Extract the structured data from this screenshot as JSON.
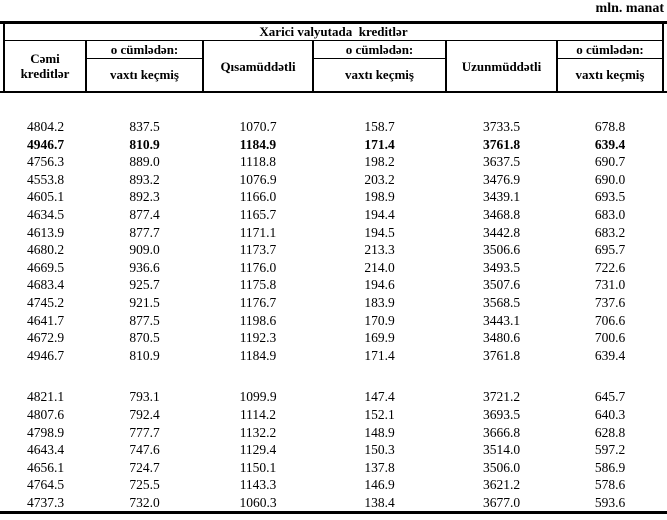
{
  "unit_label": "mln. manat",
  "table": {
    "title": "Xarici valyutada  kreditlər",
    "header": {
      "total_label": [
        "Cəmi",
        "kreditlər"
      ],
      "of_which_label": "o cümlədən:",
      "overdue_label": "vaxtı keçmiş",
      "short_term_label": "Qısamüddətli",
      "long_term_label": "Uzunmüddətli"
    },
    "groups": [
      {
        "rows": [
          {
            "values": [
              "4804.2",
              "837.5",
              "1070.7",
              "158.7",
              "3733.5",
              "678.8"
            ],
            "bold": false
          },
          {
            "values": [
              "4946.7",
              "810.9",
              "1184.9",
              "171.4",
              "3761.8",
              "639.4"
            ],
            "bold": true
          },
          {
            "values": [
              "4756.3",
              "889.0",
              "1118.8",
              "198.2",
              "3637.5",
              "690.7"
            ],
            "bold": false
          },
          {
            "values": [
              "4553.8",
              "893.2",
              "1076.9",
              "203.2",
              "3476.9",
              "690.0"
            ],
            "bold": false
          },
          {
            "values": [
              "4605.1",
              "892.3",
              "1166.0",
              "198.9",
              "3439.1",
              "693.5"
            ],
            "bold": false
          },
          {
            "values": [
              "4634.5",
              "877.4",
              "1165.7",
              "194.4",
              "3468.8",
              "683.0"
            ],
            "bold": false
          },
          {
            "values": [
              "4613.9",
              "877.7",
              "1171.1",
              "194.5",
              "3442.8",
              "683.2"
            ],
            "bold": false
          },
          {
            "values": [
              "4680.2",
              "909.0",
              "1173.7",
              "213.3",
              "3506.6",
              "695.7"
            ],
            "bold": false
          },
          {
            "values": [
              "4669.5",
              "936.6",
              "1176.0",
              "214.0",
              "3493.5",
              "722.6"
            ],
            "bold": false
          },
          {
            "values": [
              "4683.4",
              "925.7",
              "1175.8",
              "194.6",
              "3507.6",
              "731.0"
            ],
            "bold": false
          },
          {
            "values": [
              "4745.2",
              "921.5",
              "1176.7",
              "183.9",
              "3568.5",
              "737.6"
            ],
            "bold": false
          },
          {
            "values": [
              "4641.7",
              "877.5",
              "1198.6",
              "170.9",
              "3443.1",
              "706.6"
            ],
            "bold": false
          },
          {
            "values": [
              "4672.9",
              "870.5",
              "1192.3",
              "169.9",
              "3480.6",
              "700.6"
            ],
            "bold": false
          },
          {
            "values": [
              "4946.7",
              "810.9",
              "1184.9",
              "171.4",
              "3761.8",
              "639.4"
            ],
            "bold": false
          }
        ]
      },
      {
        "rows": [
          {
            "values": [
              "4821.1",
              "793.1",
              "1099.9",
              "147.4",
              "3721.2",
              "645.7"
            ],
            "bold": false
          },
          {
            "values": [
              "4807.6",
              "792.4",
              "1114.2",
              "152.1",
              "3693.5",
              "640.3"
            ],
            "bold": false
          },
          {
            "values": [
              "4798.9",
              "777.7",
              "1132.2",
              "148.9",
              "3666.8",
              "628.8"
            ],
            "bold": false
          },
          {
            "values": [
              "4643.4",
              "747.6",
              "1129.4",
              "150.3",
              "3514.0",
              "597.2"
            ],
            "bold": false
          },
          {
            "values": [
              "4656.1",
              "724.7",
              "1150.1",
              "137.8",
              "3506.0",
              "586.9"
            ],
            "bold": false
          },
          {
            "values": [
              "4764.5",
              "725.5",
              "1143.3",
              "146.9",
              "3621.2",
              "578.6"
            ],
            "bold": false
          },
          {
            "values": [
              "4737.3",
              "732.0",
              "1060.3",
              "138.4",
              "3677.0",
              "593.6"
            ],
            "bold": false
          }
        ]
      }
    ]
  }
}
